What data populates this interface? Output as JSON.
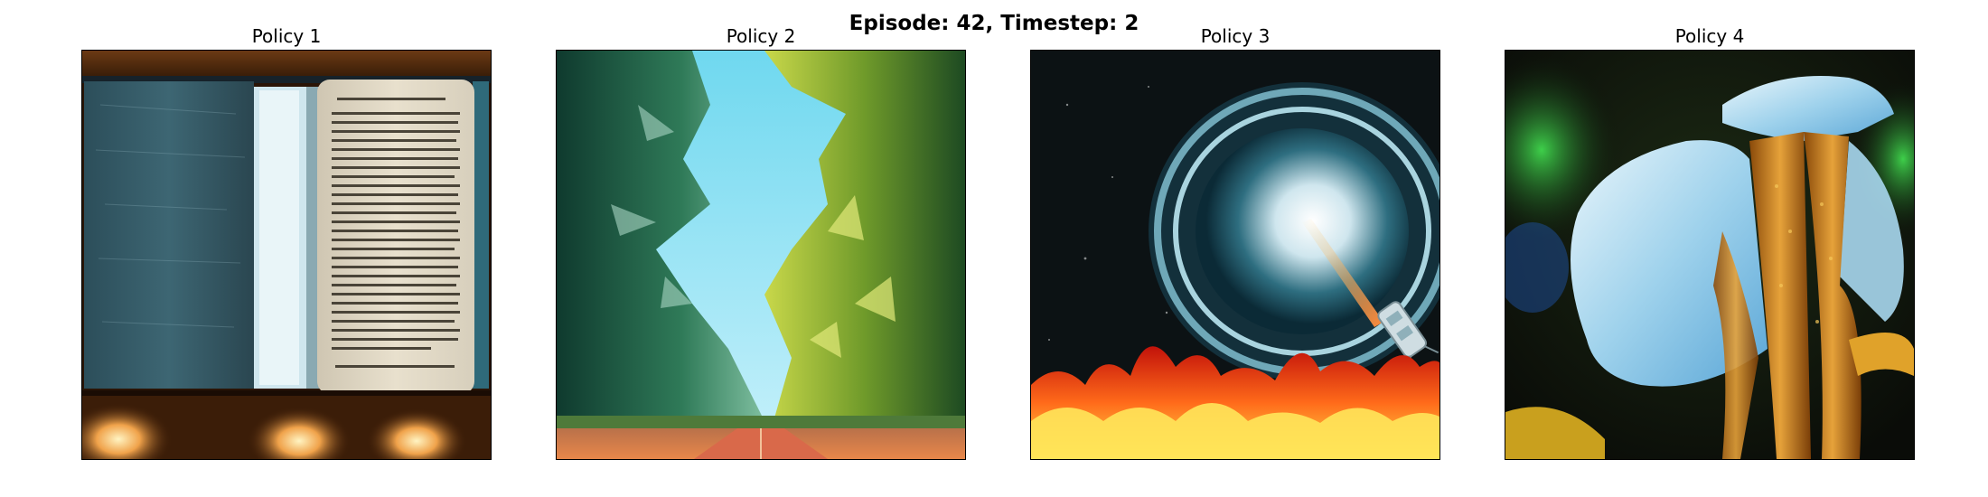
{
  "figure": {
    "suptitle": "Episode: 42, Timestep: 2"
  },
  "panels": [
    {
      "title": "Policy 1"
    },
    {
      "title": "Policy 2"
    },
    {
      "title": "Policy 3"
    },
    {
      "title": "Policy 4"
    }
  ]
}
